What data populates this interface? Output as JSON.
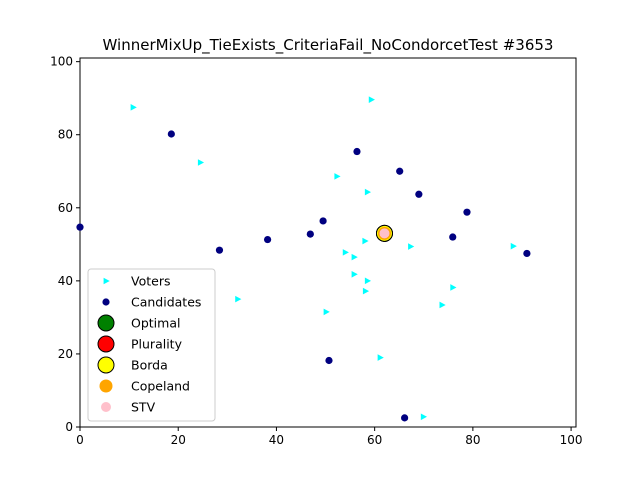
{
  "chart_data": {
    "type": "scatter",
    "title": "WinnerMixUp_TieExists_CriteriaFail_NoCondorcetTest #3653",
    "xlabel": "",
    "ylabel": "",
    "xlim": [
      0,
      101
    ],
    "ylim": [
      0,
      101
    ],
    "xticks": [
      "0",
      "20",
      "40",
      "60",
      "80",
      "100"
    ],
    "yticks": [
      "0",
      "20",
      "40",
      "60",
      "80",
      "100"
    ],
    "grid": false,
    "legend_position": "lower-left",
    "series": [
      {
        "name": "Voters",
        "marker": "triangle-right",
        "color": "#00ffff",
        "points": [
          [
            10.8,
            87.5
          ],
          [
            59.3,
            89.6
          ],
          [
            24.5,
            72.4
          ],
          [
            52.3,
            68.6
          ],
          [
            58.5,
            64.3
          ],
          [
            58.0,
            50.9
          ],
          [
            67.3,
            49.4
          ],
          [
            88.2,
            49.5
          ],
          [
            54.0,
            47.8
          ],
          [
            55.8,
            46.5
          ],
          [
            55.8,
            41.8
          ],
          [
            58.5,
            40.0
          ],
          [
            75.9,
            38.2
          ],
          [
            58.1,
            37.2
          ],
          [
            32.1,
            35.0
          ],
          [
            73.7,
            33.4
          ],
          [
            50.1,
            31.5
          ],
          [
            61.1,
            19.0
          ],
          [
            69.9,
            2.8
          ]
        ]
      },
      {
        "name": "Candidates",
        "marker": "circle",
        "color": "#000080",
        "points": [
          [
            18.6,
            80.2
          ],
          [
            56.4,
            75.4
          ],
          [
            65.1,
            70.0
          ],
          [
            69.0,
            63.7
          ],
          [
            78.8,
            58.8
          ],
          [
            0.0,
            54.7
          ],
          [
            49.5,
            56.4
          ],
          [
            46.9,
            52.8
          ],
          [
            38.2,
            51.3
          ],
          [
            75.9,
            52.0
          ],
          [
            28.4,
            48.4
          ],
          [
            91.0,
            47.5
          ],
          [
            50.7,
            18.2
          ],
          [
            66.1,
            2.5
          ]
        ]
      },
      {
        "name": "Optimal",
        "marker": "circle-large",
        "color": "#008000",
        "points": [
          [
            62.0,
            53.0
          ]
        ]
      },
      {
        "name": "Plurality",
        "marker": "circle-large",
        "color": "#ff0000",
        "points": [
          [
            62.0,
            53.0
          ]
        ]
      },
      {
        "name": "Borda",
        "marker": "circle-large",
        "color": "#ffff00",
        "points": [
          [
            62.0,
            53.0
          ]
        ]
      },
      {
        "name": "Copeland",
        "marker": "circle-medium",
        "color": "#ffa500",
        "points": [
          [
            62.0,
            53.0
          ]
        ]
      },
      {
        "name": "STV",
        "marker": "circle-small",
        "color": "#ffc0cb",
        "points": [
          [
            62.0,
            53.0
          ]
        ]
      }
    ]
  }
}
